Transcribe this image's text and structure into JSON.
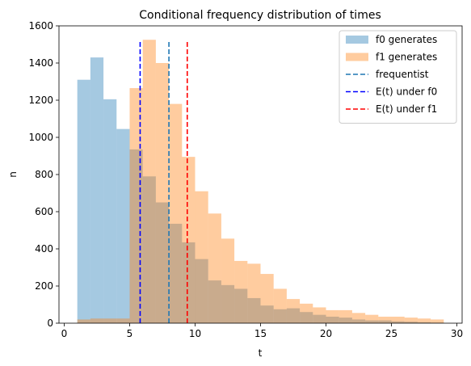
{
  "chart_data": {
    "type": "histogram",
    "title": "Conditional frequency distribution of times",
    "xlabel": "t",
    "ylabel": "n",
    "xlim": [
      -0.4,
      30.4
    ],
    "ylim": [
      0,
      1600
    ],
    "xticks": [
      0,
      5,
      10,
      15,
      20,
      25,
      30
    ],
    "yticks": [
      0,
      200,
      400,
      600,
      800,
      1000,
      1200,
      1400,
      1600
    ],
    "bin_edges": [
      1,
      2,
      3,
      4,
      5,
      6,
      7,
      8,
      9,
      10,
      11,
      12,
      13,
      14,
      15,
      16,
      17,
      18,
      19,
      20,
      21,
      22,
      23,
      24,
      25,
      26,
      27,
      28,
      29
    ],
    "series": [
      {
        "name": "f0 generates",
        "color": "#1f77b4",
        "alpha": 0.4,
        "values": [
          1310,
          1430,
          1205,
          1045,
          935,
          790,
          650,
          535,
          435,
          345,
          230,
          205,
          185,
          135,
          95,
          75,
          80,
          60,
          45,
          35,
          30,
          20,
          15,
          15,
          10,
          8,
          5,
          3
        ]
      },
      {
        "name": "f1 generates",
        "color": "#ff7f0e",
        "alpha": 0.4,
        "values": [
          20,
          25,
          25,
          25,
          1265,
          1525,
          1400,
          1180,
          895,
          710,
          590,
          455,
          335,
          320,
          265,
          185,
          130,
          105,
          85,
          70,
          70,
          55,
          45,
          35,
          35,
          30,
          25,
          20
        ]
      }
    ],
    "vlines": [
      {
        "name": "frequentist",
        "x": 8.0,
        "color": "#1f77b4"
      },
      {
        "name": "E(t) under f0",
        "x": 5.8,
        "color": "#0000ff"
      },
      {
        "name": "E(t) under f1",
        "x": 9.4,
        "color": "#ff0000"
      }
    ],
    "vline_ymax": 1520,
    "legend_position": "upper right",
    "grid": false
  }
}
